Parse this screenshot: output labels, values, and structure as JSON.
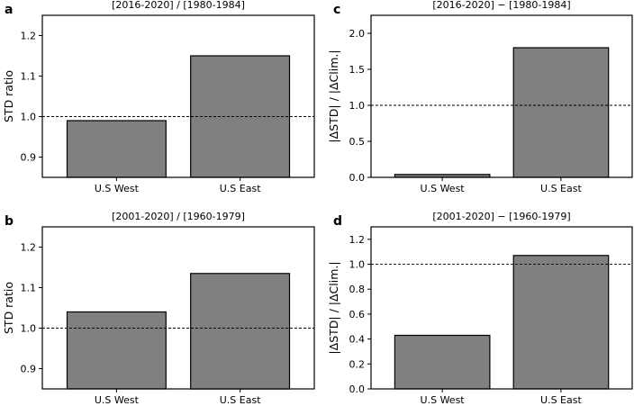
{
  "chart_data": [
    {
      "type": "bar",
      "panel": "a",
      "title": "[2016-2020] / [1980-1984]",
      "xlabel": "",
      "ylabel": "STD ratio",
      "categories": [
        "U.S West",
        "U.S East"
      ],
      "values": [
        0.99,
        1.15
      ],
      "ylim": [
        0.85,
        1.25
      ],
      "yticks": [
        0.9,
        1.0,
        1.1,
        1.2
      ],
      "ytick_labels": [
        "0.9",
        "1.0",
        "1.1",
        "1.2"
      ],
      "reference_line": 1.0,
      "bar_color": "#808080",
      "grid": false
    },
    {
      "type": "bar",
      "panel": "b",
      "title": "[2001-2020] / [1960-1979]",
      "xlabel": "",
      "ylabel": "STD ratio",
      "categories": [
        "U.S West",
        "U.S East"
      ],
      "values": [
        1.04,
        1.135
      ],
      "ylim": [
        0.85,
        1.25
      ],
      "yticks": [
        0.9,
        1.0,
        1.1,
        1.2
      ],
      "ytick_labels": [
        "0.9",
        "1.0",
        "1.1",
        "1.2"
      ],
      "reference_line": 1.0,
      "bar_color": "#808080",
      "grid": false
    },
    {
      "type": "bar",
      "panel": "c",
      "title": "[2016-2020] − [1980-1984]",
      "xlabel": "",
      "ylabel": "|ΔSTD| / |ΔClim.|",
      "categories": [
        "U.S West",
        "U.S East"
      ],
      "values": [
        0.04,
        1.8
      ],
      "ylim": [
        0.0,
        2.25
      ],
      "yticks": [
        0.0,
        0.5,
        1.0,
        1.5,
        2.0
      ],
      "ytick_labels": [
        "0.0",
        "0.5",
        "1.0",
        "1.5",
        "2.0"
      ],
      "reference_line": 1.0,
      "bar_color": "#808080",
      "grid": false
    },
    {
      "type": "bar",
      "panel": "d",
      "title": "[2001-2020] − [1960-1979]",
      "xlabel": "",
      "ylabel": "|ΔSTD| / |ΔClim.|",
      "categories": [
        "U.S West",
        "U.S East"
      ],
      "values": [
        0.43,
        1.07
      ],
      "ylim": [
        0.0,
        1.3
      ],
      "yticks": [
        0.0,
        0.2,
        0.4,
        0.6,
        0.8,
        1.0,
        1.2
      ],
      "ytick_labels": [
        "0.0",
        "0.2",
        "0.4",
        "0.6",
        "0.8",
        "1.0",
        "1.2"
      ],
      "reference_line": 1.0,
      "bar_color": "#808080",
      "grid": false
    }
  ]
}
